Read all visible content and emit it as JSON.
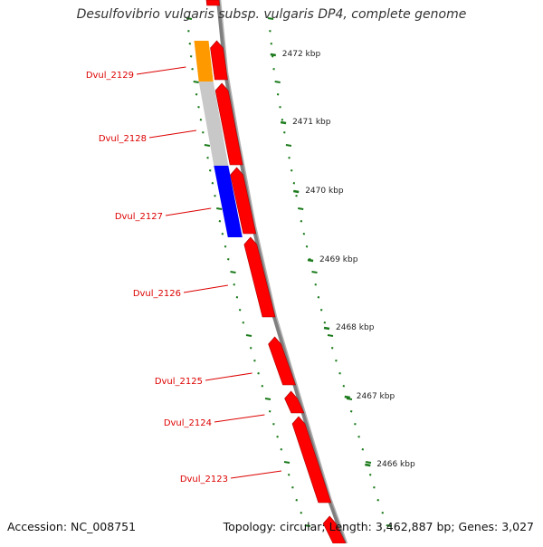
{
  "title": "Desulfovibrio vulgaris subsp. vulgaris DP4, complete genome",
  "footer": {
    "accession": "Accession: NC_008751",
    "summary": "Topology: circular; Length: 3,462,887 bp; Genes: 3,027"
  },
  "colors": {
    "backbone": "#7f7f7f",
    "tick": "#1a7a1a",
    "gene_forward": "#ff0000",
    "gene_label": "#dd0000",
    "kbp_label": "#222222",
    "cds_orange": "#ff9900",
    "cds_gray": "#c8c8c8",
    "cds_blue": "#0000ff"
  },
  "scale_labels": [
    "2472 kbp",
    "2471 kbp",
    "2470 kbp",
    "2469 kbp",
    "2468 kbp",
    "2467 kbp",
    "2466 kbp"
  ],
  "genes": [
    {
      "name": "Dvul_2129"
    },
    {
      "name": "Dvul_2128"
    },
    {
      "name": "Dvul_2127"
    },
    {
      "name": "Dvul_2126"
    },
    {
      "name": "Dvul_2125"
    },
    {
      "name": "Dvul_2124"
    },
    {
      "name": "Dvul_2123"
    }
  ]
}
